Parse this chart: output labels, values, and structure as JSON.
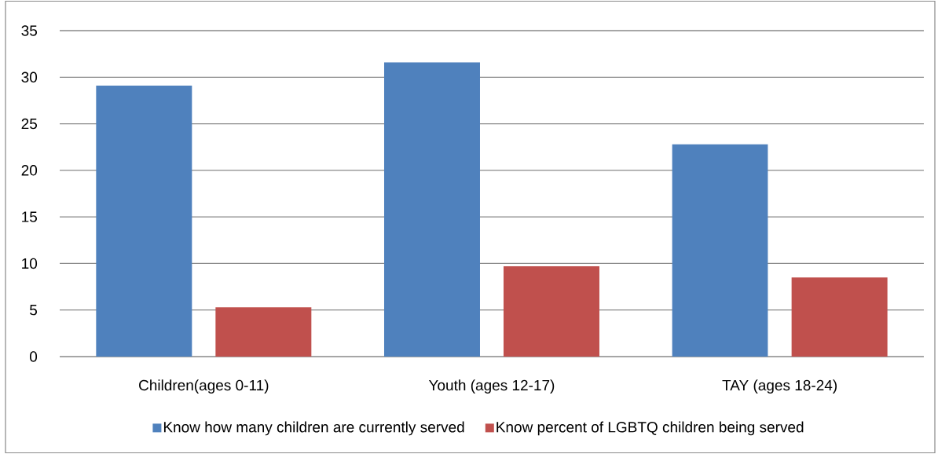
{
  "chart_data": {
    "type": "bar",
    "categories": [
      "Children(ages 0-11)",
      "Youth (ages 12-17)",
      "TAY (ages 18-24)"
    ],
    "series": [
      {
        "name": "Know how many children are currently served",
        "color": "#4f81bd",
        "values": [
          29.1,
          31.6,
          22.8
        ]
      },
      {
        "name": "Know percent of LGBTQ children  being served",
        "color": "#c0504d",
        "values": [
          5.3,
          9.7,
          8.5
        ]
      }
    ],
    "ylim": [
      0,
      35
    ],
    "yticks": [
      0,
      5,
      10,
      15,
      20,
      25,
      30,
      35
    ],
    "grid": "y",
    "legend": "bottom"
  }
}
